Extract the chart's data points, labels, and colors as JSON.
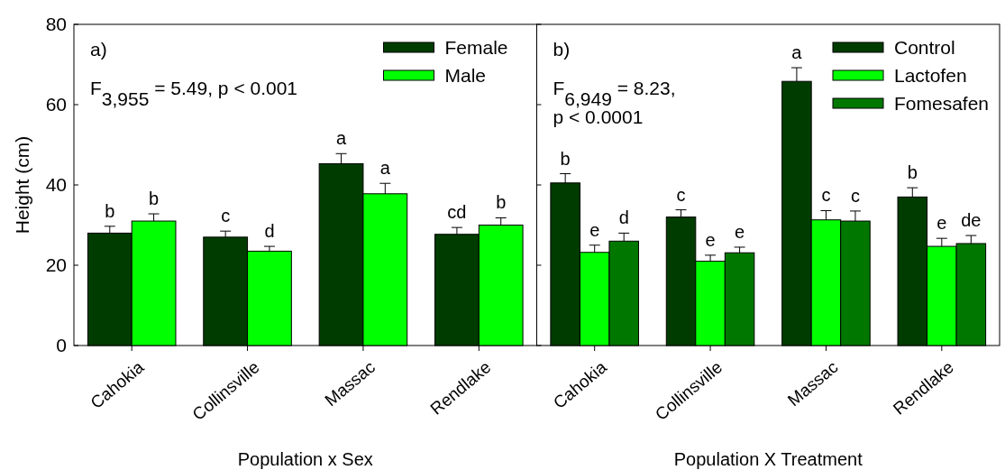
{
  "chart_data": [
    {
      "type": "bar",
      "xlabel": "Population x Sex",
      "ylabel": "Height (cm)",
      "categories": [
        "Cahokia",
        "Collinsville",
        "Massac",
        "Rendlake"
      ],
      "ylim": [
        0,
        80
      ],
      "yticks": [
        0,
        20,
        40,
        60,
        80
      ],
      "legend": "top right",
      "annotations": [
        "a)",
        "F$_{3,955}$ = 5.49, p < 0.001"
      ],
      "series": [
        {
          "name": "Female",
          "color": "#003c00",
          "values": [
            28,
            27,
            45.3,
            27.7
          ],
          "errors": [
            1.7,
            1.5,
            2.5,
            1.7
          ],
          "value_labels": [
            "b",
            "c",
            "a",
            "cd"
          ]
        },
        {
          "name": "Male",
          "color": "#00ff00",
          "values": [
            31,
            23.5,
            37.8,
            30
          ],
          "errors": [
            1.8,
            1.2,
            2.6,
            1.8
          ],
          "value_labels": [
            "b",
            "d",
            "a",
            "b"
          ]
        }
      ]
    },
    {
      "type": "bar",
      "xlabel": "Population X Treatment",
      "categories": [
        "Cahokia",
        "Collinsville",
        "Massac",
        "Rendlake"
      ],
      "ylim": [
        0,
        80
      ],
      "yticks": [
        {
          "value": 0,
          "label": null
        },
        {
          "value": 20,
          "label": null
        },
        {
          "value": 40,
          "label": null
        },
        {
          "value": 60,
          "label": null
        },
        {
          "value": 80,
          "label": null
        }
      ],
      "tick_labels": "x",
      "legend": "top right",
      "annotations": [
        "b)",
        "F$_{6,949}$ = 8.23,\np < 0.0001"
      ],
      "series": [
        {
          "name": "Control",
          "color": "#003c00",
          "values": [
            40.5,
            32,
            65.8,
            37
          ],
          "errors": [
            2.3,
            1.8,
            3.4,
            2.3
          ],
          "value_labels": [
            "b",
            "c",
            "a",
            "b"
          ]
        },
        {
          "name": "Lactofen",
          "color": "#00ff00",
          "values": [
            23.2,
            21,
            31.3,
            24.7
          ],
          "errors": [
            1.8,
            1.5,
            2.3,
            2
          ],
          "value_labels": [
            "e",
            "e",
            "c",
            "e"
          ]
        },
        {
          "name": "Fomesafen",
          "color": "#007800",
          "values": [
            26,
            23.1,
            31,
            25.4
          ],
          "errors": [
            2,
            1.4,
            2.5,
            2
          ],
          "value_labels": [
            "d",
            "e",
            "c",
            "de"
          ]
        }
      ]
    }
  ]
}
